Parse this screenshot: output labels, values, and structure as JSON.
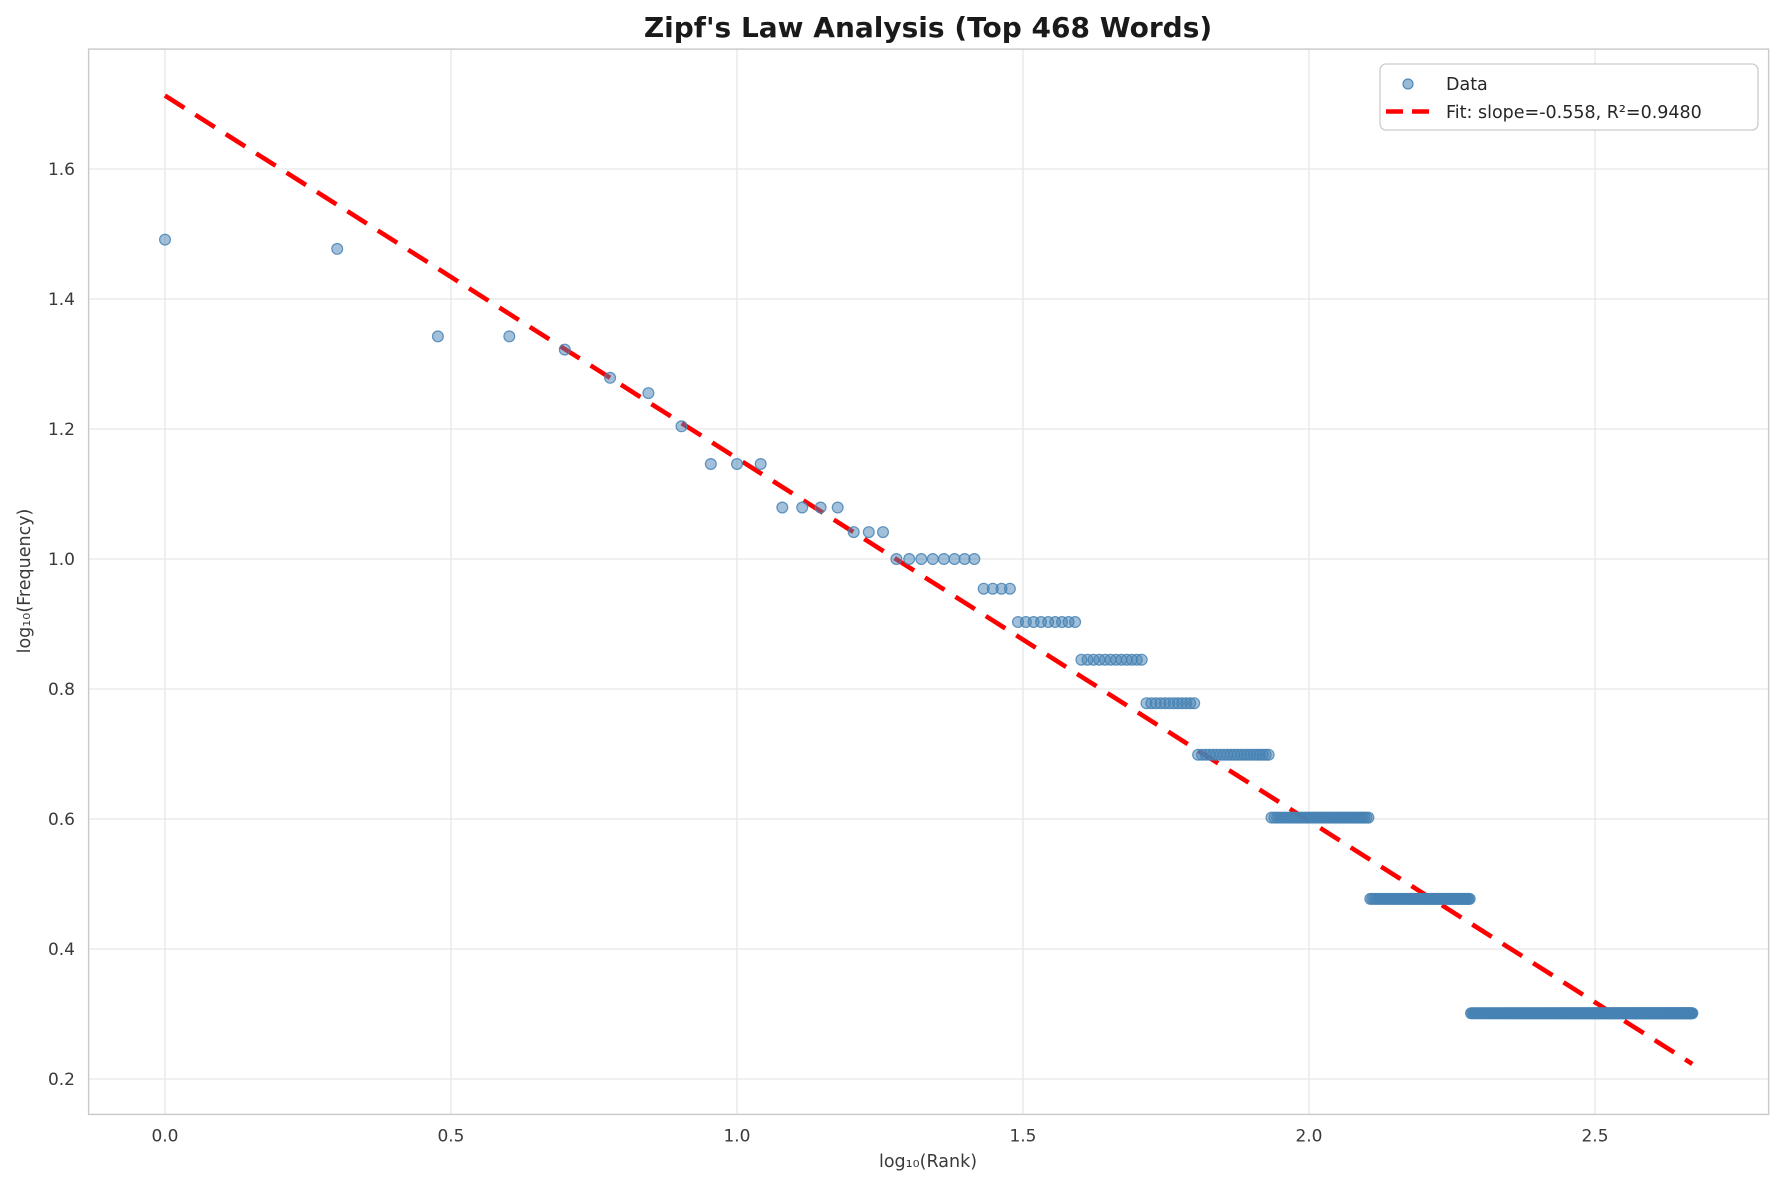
{
  "chart_data": {
    "type": "scatter",
    "title": "Zipf's Law Analysis (Top 468 Words)",
    "xlabel": "log₁₀(Rank)",
    "ylabel": "log₁₀(Frequency)",
    "total_words": 468,
    "xlim": [
      -0.1335,
      2.8035
    ],
    "ylim": [
      0.1455,
      1.7845
    ],
    "grid": true,
    "xticks": {
      "values": [
        0.0,
        0.5,
        1.0,
        1.5,
        2.0,
        2.5
      ],
      "labels": [
        "0.0",
        "0.5",
        "1.0",
        "1.5",
        "2.0",
        "2.5"
      ]
    },
    "yticks": {
      "values": [
        0.2,
        0.4,
        0.6,
        0.8,
        1.0,
        1.2,
        1.4,
        1.6
      ],
      "labels": [
        "0.2",
        "0.4",
        "0.6",
        "0.8",
        "1.0",
        "1.2",
        "1.4",
        "1.6"
      ]
    },
    "scatter_color": "#4682b4",
    "grid_color": "#e7e7e7",
    "spine_color": "#c9c9c9",
    "frequency_bands": [
      {
        "freq": 31,
        "rank_start": 1,
        "rank_end": 1,
        "log10_freq": 1.4914
      },
      {
        "freq": 30,
        "rank_start": 2,
        "rank_end": 2,
        "log10_freq": 1.4771
      },
      {
        "freq": 22,
        "rank_start": 3,
        "rank_end": 4,
        "log10_freq": 1.3424
      },
      {
        "freq": 21,
        "rank_start": 5,
        "rank_end": 5,
        "log10_freq": 1.3222
      },
      {
        "freq": 19,
        "rank_start": 6,
        "rank_end": 6,
        "log10_freq": 1.2788
      },
      {
        "freq": 18,
        "rank_start": 7,
        "rank_end": 7,
        "log10_freq": 1.2553
      },
      {
        "freq": 16,
        "rank_start": 8,
        "rank_end": 8,
        "log10_freq": 1.2041
      },
      {
        "freq": 14,
        "rank_start": 9,
        "rank_end": 11,
        "log10_freq": 1.1461
      },
      {
        "freq": 12,
        "rank_start": 12,
        "rank_end": 15,
        "log10_freq": 1.0792
      },
      {
        "freq": 11,
        "rank_start": 16,
        "rank_end": 18,
        "log10_freq": 1.0414
      },
      {
        "freq": 10,
        "rank_start": 19,
        "rank_end": 26,
        "log10_freq": 1.0
      },
      {
        "freq": 9,
        "rank_start": 27,
        "rank_end": 30,
        "log10_freq": 0.9542
      },
      {
        "freq": 8,
        "rank_start": 31,
        "rank_end": 39,
        "log10_freq": 0.9031
      },
      {
        "freq": 7,
        "rank_start": 40,
        "rank_end": 51,
        "log10_freq": 0.8451
      },
      {
        "freq": 6,
        "rank_start": 52,
        "rank_end": 63,
        "log10_freq": 0.7782
      },
      {
        "freq": 5,
        "rank_start": 64,
        "rank_end": 85,
        "log10_freq": 0.699
      },
      {
        "freq": 4,
        "rank_start": 86,
        "rank_end": 127,
        "log10_freq": 0.6021
      },
      {
        "freq": 3,
        "rank_start": 128,
        "rank_end": 191,
        "log10_freq": 0.4771
      },
      {
        "freq": 2,
        "rank_start": 192,
        "rank_end": 468,
        "log10_freq": 0.301
      }
    ],
    "fit": {
      "slope": -0.558,
      "intercept": 1.713,
      "r_squared": 0.948,
      "x_range": [
        0.0,
        2.67
      ],
      "y_at_range": [
        1.713,
        0.223
      ],
      "color": "#ff0000",
      "style": "dashed"
    },
    "legend": {
      "position": "upper-right",
      "entries": [
        {
          "label": "Data",
          "marker": "circle"
        },
        {
          "label": "Fit: slope=-0.558, R²=0.9480",
          "marker": "dashed-line"
        }
      ]
    }
  }
}
